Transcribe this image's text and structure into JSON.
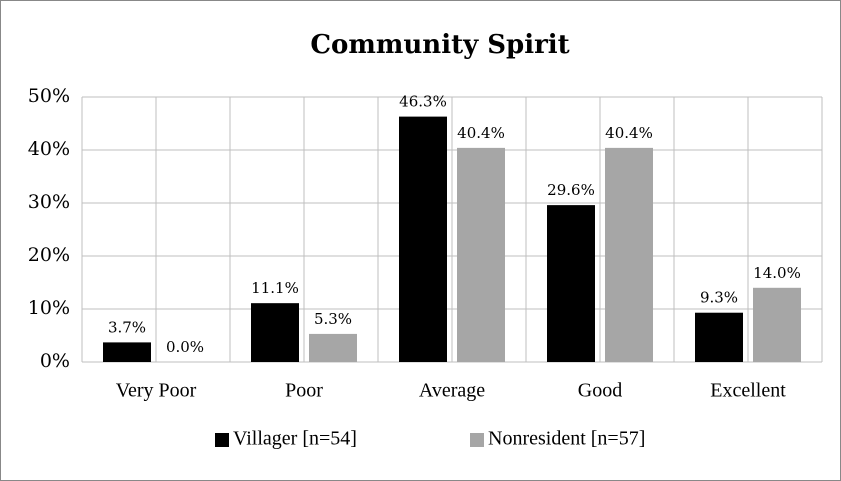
{
  "chart_data": {
    "type": "bar",
    "title": "Community Spirit",
    "categories": [
      "Very Poor",
      "Poor",
      "Average",
      "Good",
      "Excellent"
    ],
    "series": [
      {
        "name": "Villager [n=54]",
        "color": "#000000",
        "values": [
          3.7,
          11.1,
          46.3,
          29.6,
          9.3
        ],
        "value_labels": [
          "3.7%",
          "11.1%",
          "46.3%",
          "29.6%",
          "9.3%"
        ]
      },
      {
        "name": "Nonresident [n=57]",
        "color": "#a6a6a6",
        "values": [
          0.0,
          5.3,
          40.4,
          40.4,
          14.0
        ],
        "value_labels": [
          "0.0%",
          "5.3%",
          "40.4%",
          "40.4%",
          "14.0%"
        ]
      }
    ],
    "ylim": [
      0,
      50
    ],
    "yticks": [
      {
        "value": 0,
        "label": "0%"
      },
      {
        "value": 10,
        "label": "10%"
      },
      {
        "value": 20,
        "label": "20%"
      },
      {
        "value": 30,
        "label": "30%"
      },
      {
        "value": 40,
        "label": "40%"
      },
      {
        "value": 50,
        "label": "50%"
      }
    ],
    "grid": true,
    "legend": "bottom"
  }
}
